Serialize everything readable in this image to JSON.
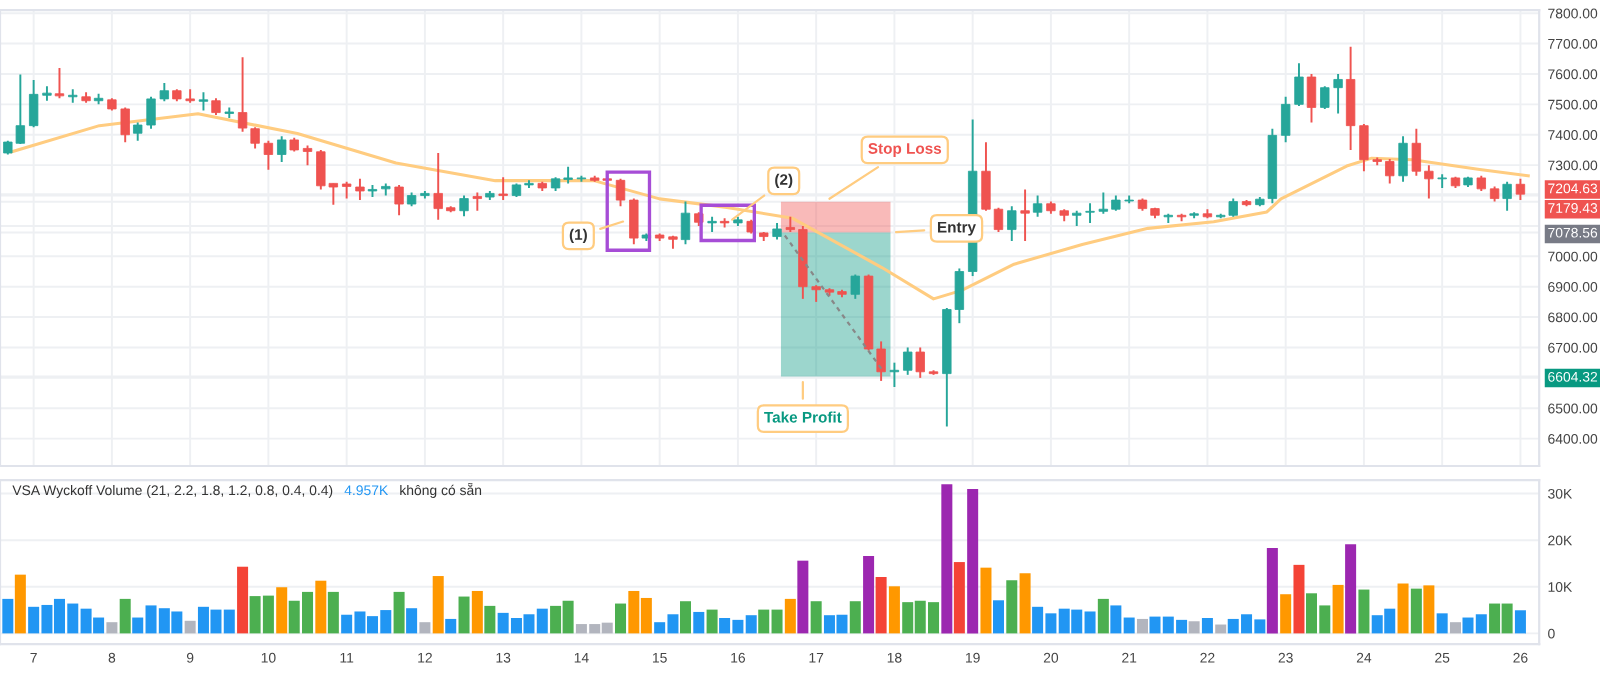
{
  "chart_data": [
    {
      "type": "candlestick",
      "colors": [
        "#26a69a",
        "#26a69a",
        "#26a69a",
        "#26a69a",
        "#ef5350",
        "#26a69a",
        "#ef5350",
        "#26a69a",
        "#ef5350",
        "#ef5350",
        "#26a69a",
        "#26a69a",
        "#26a69a",
        "#ef5350",
        "#ef5350",
        "#26a69a",
        "#ef5350",
        "#26a69a",
        "#ef5350",
        "#ef5350",
        "#ef5350",
        "#26a69a",
        "#ef5350",
        "#ef5350",
        "#ef5350",
        "#ef5350",
        "#ef5350",
        "#ef5350",
        "#26a69a",
        "#26a69a",
        "#ef5350",
        "#26a69a",
        "#26a69a",
        "#ef5350",
        "#ef5350",
        "#26a69a",
        "#ef5350",
        "#26a69a",
        "#ef5350",
        "#26a69a",
        "#26a69a",
        "#ef5350",
        "#26a69a",
        "#26a69a",
        "#26a69a",
        "#ef5350",
        "#ef5350",
        "#ef5350",
        "#ef5350",
        "#26a69a",
        "#ef5350",
        "#ef5350",
        "#26a69a",
        "#ef5350",
        "#26a69a",
        "#ef5350",
        "#26a69a",
        "#ef5350",
        "#ef5350",
        "#26a69a",
        "#ef5350",
        "#ef5350",
        "#ef5350",
        "#ef5350",
        "#ef5350",
        "#26a69a",
        "#ef5350",
        "#ef5350",
        "#26a69a",
        "#26a69a",
        "#ef5350",
        "#ef5350",
        "#26a69a",
        "#26a69a",
        "#26a69a",
        "#ef5350",
        "#ef5350",
        "#26a69a",
        "#ef5350",
        "#26a69a",
        "#ef5350",
        "#ef5350",
        "#26a69a",
        "#26a69a",
        "#26a69a",
        "#26a69a",
        "#26a69a",
        "#ef5350",
        "#ef5350",
        "#26a69a",
        "#ef5350",
        "#26a69a",
        "#ef5350",
        "#26a69a",
        "#26a69a",
        "#ef5350",
        "#26a69a",
        "#26a69a",
        "#26a69a",
        "#26a69a",
        "#ef5350",
        "#26a69a",
        "#26a69a",
        "#ef5350",
        "#ef5350",
        "#ef5350",
        "#ef5350",
        "#26a69a",
        "#ef5350",
        "#ef5350",
        "#26a69a",
        "#ef5350",
        "#26a69a",
        "#ef5350",
        "#ef5350",
        "#26a69a",
        "#ef5350"
      ],
      "x": [
        6.67,
        6.83,
        7,
        7.17,
        7.33,
        7.5,
        7.67,
        7.83,
        8,
        8.17,
        8.33,
        8.5,
        8.67,
        8.83,
        9,
        9.17,
        9.33,
        9.5,
        9.67,
        9.83,
        10,
        10.17,
        10.33,
        10.5,
        10.67,
        10.83,
        11,
        11.17,
        11.33,
        11.5,
        11.67,
        11.83,
        12,
        12.17,
        12.33,
        12.5,
        12.67,
        12.83,
        13,
        13.17,
        13.33,
        13.5,
        13.67,
        13.83,
        14,
        14.17,
        14.33,
        14.5,
        14.67,
        14.83,
        15,
        15.17,
        15.33,
        15.5,
        15.67,
        15.83,
        16,
        16.17,
        16.33,
        16.5,
        16.67,
        16.83,
        17,
        17.17,
        17.33,
        17.5,
        17.67,
        17.83,
        18,
        18.17,
        18.33,
        18.5,
        18.67,
        18.83,
        19,
        19.17,
        19.33,
        19.5,
        19.67,
        19.83,
        20,
        20.17,
        20.33,
        20.5,
        20.67,
        20.83,
        21,
        21.17,
        21.33,
        21.5,
        21.67,
        21.83,
        22,
        22.17,
        22.33,
        22.5,
        22.67,
        22.83,
        23,
        23.17,
        23.33,
        23.5,
        23.67,
        23.83,
        24,
        24.17,
        24.33,
        24.5,
        24.67,
        24.83,
        25,
        25.17,
        25.33,
        25.5,
        25.67,
        25.83,
        26
      ],
      "ohlc": [
        [
          7340,
          7380,
          7335,
          7376
        ],
        [
          7372,
          7598,
          7370,
          7430
        ],
        [
          7430,
          7580,
          7425,
          7533
        ],
        [
          7530,
          7560,
          7512,
          7537
        ],
        [
          7535,
          7620,
          7520,
          7528
        ],
        [
          7525,
          7550,
          7505,
          7530
        ],
        [
          7525,
          7540,
          7505,
          7512
        ],
        [
          7512,
          7535,
          7500,
          7520
        ],
        [
          7515,
          7520,
          7480,
          7485
        ],
        [
          7485,
          7490,
          7375,
          7400
        ],
        [
          7405,
          7440,
          7380,
          7432
        ],
        [
          7432,
          7525,
          7420,
          7518
        ],
        [
          7518,
          7570,
          7510,
          7545
        ],
        [
          7545,
          7550,
          7510,
          7518
        ],
        [
          7518,
          7550,
          7505,
          7512
        ],
        [
          7510,
          7540,
          7480,
          7515
        ],
        [
          7512,
          7520,
          7465,
          7473
        ],
        [
          7470,
          7490,
          7455,
          7475
        ],
        [
          7473,
          7655,
          7410,
          7422
        ],
        [
          7420,
          7425,
          7355,
          7372
        ],
        [
          7372,
          7380,
          7285,
          7335
        ],
        [
          7335,
          7395,
          7310,
          7383
        ],
        [
          7383,
          7390,
          7345,
          7350
        ],
        [
          7355,
          7365,
          7300,
          7345
        ],
        [
          7344,
          7350,
          7220,
          7232
        ],
        [
          7240,
          7240,
          7170,
          7228
        ],
        [
          7238,
          7245,
          7190,
          7230
        ],
        [
          7228,
          7255,
          7185,
          7215
        ],
        [
          7215,
          7235,
          7195,
          7220
        ],
        [
          7222,
          7240,
          7200,
          7230
        ],
        [
          7228,
          7235,
          7135,
          7172
        ],
        [
          7172,
          7210,
          7165,
          7200
        ],
        [
          7200,
          7215,
          7190,
          7207
        ],
        [
          7207,
          7340,
          7120,
          7157
        ],
        [
          7160,
          7165,
          7145,
          7150
        ],
        [
          7150,
          7200,
          7132,
          7190
        ],
        [
          7197,
          7210,
          7150,
          7190
        ],
        [
          7195,
          7215,
          7185,
          7207
        ],
        [
          7205,
          7260,
          7185,
          7200
        ],
        [
          7200,
          7240,
          7195,
          7235
        ],
        [
          7235,
          7250,
          7225,
          7240
        ],
        [
          7240,
          7245,
          7215,
          7225
        ],
        [
          7225,
          7260,
          7215,
          7255
        ],
        [
          7253,
          7295,
          7240,
          7258
        ],
        [
          7255,
          7265,
          7245,
          7258
        ],
        [
          7258,
          7265,
          7245,
          7250
        ],
        [
          7255,
          7260,
          7245,
          7250
        ],
        [
          7250,
          7255,
          7165,
          7185
        ],
        [
          7185,
          7190,
          7040,
          7060
        ],
        [
          7060,
          7075,
          7050,
          7070
        ],
        [
          7070,
          7075,
          7050,
          7060
        ],
        [
          7064,
          7068,
          7025,
          7056
        ],
        [
          7055,
          7180,
          7040,
          7142
        ],
        [
          7140,
          7145,
          7100,
          7112
        ],
        [
          7110,
          7130,
          7080,
          7115
        ],
        [
          7115,
          7125,
          7095,
          7110
        ],
        [
          7110,
          7130,
          7100,
          7120
        ],
        [
          7115,
          7120,
          7075,
          7080
        ],
        [
          7077,
          7080,
          7050,
          7065
        ],
        [
          7065,
          7110,
          7055,
          7090
        ],
        [
          7095,
          7130,
          7080,
          7088
        ],
        [
          7088,
          7100,
          6860,
          6900
        ],
        [
          6900,
          6905,
          6850,
          6890
        ],
        [
          6890,
          6895,
          6870,
          6882
        ],
        [
          6884,
          6890,
          6865,
          6875
        ],
        [
          6875,
          6940,
          6860,
          6935
        ],
        [
          6935,
          6940,
          6690,
          6695
        ],
        [
          6695,
          6720,
          6590,
          6620
        ],
        [
          6620,
          6650,
          6570,
          6625
        ],
        [
          6625,
          6700,
          6610,
          6685
        ],
        [
          6685,
          6700,
          6600,
          6620
        ],
        [
          6620,
          6625,
          6610,
          6614
        ],
        [
          6614,
          6830,
          6440,
          6825
        ],
        [
          6825,
          6960,
          6780,
          6950
        ],
        [
          6950,
          7450,
          6935,
          7280
        ],
        [
          7280,
          7375,
          7150,
          7155
        ],
        [
          7155,
          7160,
          7080,
          7088
        ],
        [
          7088,
          7165,
          7050,
          7150
        ],
        [
          7150,
          7220,
          7050,
          7142
        ],
        [
          7145,
          7200,
          7130,
          7173
        ],
        [
          7173,
          7180,
          7140,
          7150
        ],
        [
          7150,
          7155,
          7115,
          7135
        ],
        [
          7135,
          7150,
          7100,
          7142
        ],
        [
          7145,
          7175,
          7110,
          7148
        ],
        [
          7148,
          7210,
          7140,
          7155
        ],
        [
          7155,
          7200,
          7150,
          7185
        ],
        [
          7182,
          7200,
          7175,
          7185
        ],
        [
          7185,
          7190,
          7150,
          7157
        ],
        [
          7157,
          7160,
          7125,
          7135
        ],
        [
          7130,
          7140,
          7110,
          7135
        ],
        [
          7135,
          7140,
          7115,
          7130
        ],
        [
          7135,
          7145,
          7125,
          7140
        ],
        [
          7140,
          7155,
          7125,
          7130
        ],
        [
          7130,
          7140,
          7125,
          7135
        ],
        [
          7135,
          7190,
          7130,
          7180
        ],
        [
          7180,
          7185,
          7165,
          7170
        ],
        [
          7170,
          7195,
          7165,
          7188
        ],
        [
          7190,
          7420,
          7175,
          7398
        ],
        [
          7398,
          7525,
          7375,
          7500
        ],
        [
          7500,
          7635,
          7495,
          7590
        ],
        [
          7590,
          7600,
          7440,
          7490
        ],
        [
          7490,
          7560,
          7485,
          7555
        ],
        [
          7555,
          7600,
          7470,
          7582
        ],
        [
          7582,
          7690,
          7350,
          7430
        ],
        [
          7430,
          7435,
          7280,
          7318
        ],
        [
          7318,
          7325,
          7300,
          7312
        ],
        [
          7312,
          7320,
          7240,
          7265
        ],
        [
          7265,
          7395,
          7245,
          7372
        ],
        [
          7372,
          7420,
          7265,
          7280
        ],
        [
          7280,
          7300,
          7190,
          7255
        ],
        [
          7255,
          7270,
          7225,
          7258
        ],
        [
          7258,
          7262,
          7225,
          7232
        ],
        [
          7235,
          7262,
          7228,
          7258
        ],
        [
          7258,
          7265,
          7215,
          7222
        ],
        [
          7222,
          7230,
          7180,
          7190
        ],
        [
          7190,
          7245,
          7150,
          7237
        ],
        [
          7237,
          7255,
          7185,
          7204.63
        ]
      ],
      "series": [
        {
          "type": "bar",
          "name": "Stop Loss",
          "color": "#ef5350",
          "x": [
            17.25
          ],
          "base": [
            7078.56
          ],
          "values": [
            100.87
          ]
        },
        {
          "type": "bar",
          "name": "Take Profit",
          "color": "#089981",
          "x": [
            17.25
          ],
          "base": [
            6604.32
          ],
          "values": [
            474.24
          ]
        },
        {
          "type": "line",
          "color": "#ffcc80",
          "x": [
            6.72,
            7.84,
            9.1,
            10.37,
            11.63,
            12.9,
            14.16,
            15.0,
            15.86,
            16.7,
            17.0,
            17.84,
            18.5,
            18.86,
            19.53,
            20.4,
            21.24,
            22.08,
            22.76,
            22.94,
            23.78,
            24.1,
            24.62,
            25.48,
            26.1
          ],
          "values": [
            7344,
            7430,
            7469,
            7404,
            7307,
            7249,
            7249,
            7189,
            7161,
            7125,
            7082,
            6963,
            6860,
            6888,
            6974,
            7039,
            7092,
            7114,
            7146,
            7189,
            7297,
            7323,
            7318,
            7286,
            7265
          ]
        }
      ],
      "xlim": [
        6.57,
        26.24
      ],
      "ylim": [
        6310,
        7810
      ],
      "xticks": [
        7,
        8,
        9,
        10,
        11,
        12,
        13,
        14,
        15,
        16,
        17,
        18,
        19,
        20,
        21,
        22,
        23,
        24,
        25,
        26
      ],
      "yticks": [
        {
          "value": 6400,
          "label": "6400.00"
        },
        {
          "value": 6500,
          "label": "6500.00"
        },
        {
          "value": 6600,
          "label": null
        },
        {
          "value": 6604.32,
          "label": "6604.32"
        },
        {
          "value": 6700,
          "label": "6700.00"
        },
        {
          "value": 6800,
          "label": "6800.00"
        },
        {
          "value": 6900,
          "label": "6900.00"
        },
        {
          "value": 7000,
          "label": "7000.00"
        },
        {
          "value": 7078.56,
          "label": "7078.56"
        },
        {
          "value": 7100,
          "label": null
        },
        {
          "value": 7179.43,
          "label": "7179.43"
        },
        {
          "value": 7200,
          "label": null
        },
        {
          "value": 7204.63,
          "label": "7204.63"
        },
        {
          "value": 7300,
          "label": "7300.00"
        },
        {
          "value": 7400,
          "label": "7400.00"
        },
        {
          "value": 7500,
          "label": "7500.00"
        },
        {
          "value": 7600,
          "label": "7600.00"
        },
        {
          "value": 7700,
          "label": "7700.00"
        },
        {
          "value": 7800,
          "label": "7800.00"
        }
      ],
      "tick_labels": "y",
      "grid": true,
      "annotations": [
        {
          "text": "(1)",
          "x": 14.6,
          "y": 7120
        },
        {
          "text": "(2)",
          "x": 15.87,
          "y": 7110
        },
        "Entry"
      ]
    },
    {
      "type": "bar",
      "title": "VSA Wyckoff Volume (21, 2.2, 1.8, 1.2, 0.8, 0.4, 0.4)",
      "annotations": [
        "4.957K",
        "không có sẵn"
      ],
      "x": [
        6.67,
        6.83,
        7,
        7.17,
        7.33,
        7.5,
        7.67,
        7.83,
        8,
        8.17,
        8.33,
        8.5,
        8.67,
        8.83,
        9,
        9.17,
        9.33,
        9.5,
        9.67,
        9.83,
        10,
        10.17,
        10.33,
        10.5,
        10.67,
        10.83,
        11,
        11.17,
        11.33,
        11.5,
        11.67,
        11.83,
        12,
        12.17,
        12.33,
        12.5,
        12.67,
        12.83,
        13,
        13.17,
        13.33,
        13.5,
        13.67,
        13.83,
        14,
        14.17,
        14.33,
        14.5,
        14.67,
        14.83,
        15,
        15.17,
        15.33,
        15.5,
        15.67,
        15.83,
        16,
        16.17,
        16.33,
        16.5,
        16.67,
        16.83,
        17,
        17.17,
        17.33,
        17.5,
        17.67,
        17.83,
        18,
        18.17,
        18.33,
        18.5,
        18.67,
        18.83,
        19,
        19.17,
        19.33,
        19.5,
        19.67,
        19.83,
        20,
        20.17,
        20.33,
        20.5,
        20.67,
        20.83,
        21,
        21.17,
        21.33,
        21.5,
        21.67,
        21.83,
        22,
        22.17,
        22.33,
        22.5,
        22.67,
        22.83,
        23,
        23.17,
        23.33,
        23.5,
        23.67,
        23.83,
        24,
        24.17,
        24.33,
        24.5,
        24.67,
        24.83,
        25,
        25.17,
        25.33,
        25.5,
        25.67,
        25.83,
        26
      ],
      "values": [
        7400,
        12600,
        5700,
        6100,
        7400,
        6400,
        5300,
        3400,
        2400,
        7400,
        3400,
        6000,
        5400,
        4700,
        2700,
        5700,
        5100,
        5100,
        14300,
        8000,
        8100,
        9900,
        7000,
        8900,
        11300,
        8900,
        4000,
        4700,
        3700,
        5000,
        8900,
        5400,
        2400,
        12300,
        3100,
        7900,
        9100,
        5900,
        4400,
        3300,
        4100,
        5300,
        5900,
        7000,
        2000,
        2000,
        2300,
        6400,
        9100,
        7600,
        2400,
        4100,
        6900,
        4600,
        5100,
        3300,
        2900,
        3900,
        5100,
        5100,
        7400,
        15600,
        6900,
        3900,
        4000,
        6900,
        16600,
        12100,
        10100,
        6700,
        7000,
        6700,
        32000,
        15300,
        31000,
        14100,
        7100,
        11400,
        12900,
        5700,
        4300,
        5300,
        5100,
        4700,
        7400,
        6000,
        3400,
        3100,
        3600,
        3600,
        2900,
        2600,
        3300,
        1900,
        3100,
        4100,
        3000,
        18300,
        8400,
        14700,
        8600,
        6000,
        10400,
        19100,
        9400,
        3900,
        5300,
        10700,
        9600,
        10300,
        4300,
        2400,
        3400,
        4100,
        6400,
        6400,
        4957
      ],
      "colors": [
        "#2196f3",
        "#ff9800",
        "#2196f3",
        "#2196f3",
        "#2196f3",
        "#2196f3",
        "#2196f3",
        "#2196f3",
        "#b2b5be",
        "#4caf50",
        "#2196f3",
        "#2196f3",
        "#2196f3",
        "#2196f3",
        "#b2b5be",
        "#2196f3",
        "#2196f3",
        "#2196f3",
        "#f44336",
        "#4caf50",
        "#4caf50",
        "#ff9800",
        "#4caf50",
        "#4caf50",
        "#ff9800",
        "#4caf50",
        "#2196f3",
        "#2196f3",
        "#2196f3",
        "#2196f3",
        "#4caf50",
        "#2196f3",
        "#b2b5be",
        "#ff9800",
        "#2196f3",
        "#4caf50",
        "#ff9800",
        "#4caf50",
        "#2196f3",
        "#2196f3",
        "#2196f3",
        "#2196f3",
        "#4caf50",
        "#4caf50",
        "#b2b5be",
        "#b2b5be",
        "#b2b5be",
        "#4caf50",
        "#ff9800",
        "#ff9800",
        "#2196f3",
        "#2196f3",
        "#4caf50",
        "#2196f3",
        "#4caf50",
        "#2196f3",
        "#2196f3",
        "#2196f3",
        "#4caf50",
        "#4caf50",
        "#ff9800",
        "#9c27b0",
        "#4caf50",
        "#2196f3",
        "#2196f3",
        "#4caf50",
        "#9c27b0",
        "#f44336",
        "#ff9800",
        "#4caf50",
        "#4caf50",
        "#4caf50",
        "#9c27b0",
        "#f44336",
        "#9c27b0",
        "#ff9800",
        "#2196f3",
        "#4caf50",
        "#ff9800",
        "#2196f3",
        "#2196f3",
        "#2196f3",
        "#2196f3",
        "#2196f3",
        "#4caf50",
        "#2196f3",
        "#2196f3",
        "#b2b5be",
        "#2196f3",
        "#2196f3",
        "#2196f3",
        "#b2b5be",
        "#2196f3",
        "#b2b5be",
        "#2196f3",
        "#2196f3",
        "#2196f3",
        "#9c27b0",
        "#ff9800",
        "#f44336",
        "#4caf50",
        "#4caf50",
        "#ff9800",
        "#9c27b0",
        "#4caf50",
        "#2196f3",
        "#2196f3",
        "#ff9800",
        "#4caf50",
        "#ff9800",
        "#2196f3",
        "#b2b5be",
        "#2196f3",
        "#2196f3",
        "#4caf50",
        "#4caf50",
        "#2196f3"
      ],
      "xlim": [
        6.57,
        26.24
      ],
      "ylim": [
        -2300,
        32900
      ],
      "xticks": [
        7,
        8,
        9,
        10,
        11,
        12,
        13,
        14,
        15,
        16,
        17,
        18,
        19,
        20,
        21,
        22,
        23,
        24,
        25,
        26
      ],
      "yticks": [
        0,
        {
          "value": 10000,
          "label": "10K"
        },
        {
          "value": 20000,
          "label": "20K"
        },
        {
          "value": 30000,
          "label": "30K"
        }
      ],
      "grid": "y"
    }
  ]
}
